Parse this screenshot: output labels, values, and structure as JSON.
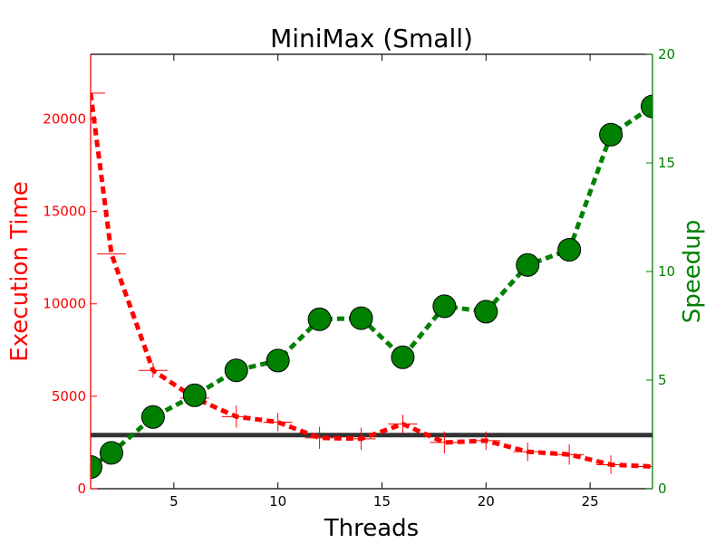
{
  "chart_data": {
    "type": "line",
    "title": "MiniMax (Small)",
    "xlabel": "Threads",
    "ylabel_left": "Execution Time",
    "ylabel_right": "Speedup",
    "xlim": [
      1,
      28
    ],
    "ylim_left": [
      0,
      23500
    ],
    "ylim_right": [
      0,
      20
    ],
    "x_ticks": [
      5,
      10,
      15,
      20,
      25
    ],
    "y_left_ticks": [
      0,
      5000,
      10000,
      15000,
      20000
    ],
    "y_right_ticks": [
      0,
      5,
      10,
      15,
      20
    ],
    "grid": false,
    "colors": {
      "execution_time": "#ff0000",
      "speedup": "#008000",
      "baseline": "#333333",
      "axis": "#000000"
    },
    "series": [
      {
        "axis": "left",
        "style": "dashed line with vertical error bars",
        "x": [
          1,
          2,
          4,
          6,
          8,
          10,
          12,
          14,
          16,
          18,
          20,
          22,
          24,
          26,
          28
        ],
        "values": [
          21400,
          12700,
          6400,
          4900,
          3900,
          3600,
          2750,
          2700,
          3500,
          2500,
          2600,
          2000,
          1850,
          1300,
          1200
        ],
        "error": [
          0,
          0,
          400,
          400,
          600,
          500,
          600,
          600,
          500,
          600,
          500,
          500,
          550,
          500,
          0
        ]
      },
      {
        "axis": "right",
        "style": "dashed line with circle markers",
        "x": [
          1,
          2,
          4,
          6,
          8,
          10,
          12,
          14,
          16,
          18,
          20,
          22,
          24,
          26,
          28
        ],
        "values": [
          1.0,
          1.65,
          3.3,
          4.3,
          5.45,
          5.9,
          7.8,
          7.85,
          6.05,
          8.4,
          8.15,
          10.3,
          11.0,
          16.3,
          17.6
        ]
      },
      {
        "axis": "left",
        "style": "solid horizontal line",
        "x": [
          1,
          28
        ],
        "values": [
          2900,
          2900
        ]
      }
    ]
  }
}
